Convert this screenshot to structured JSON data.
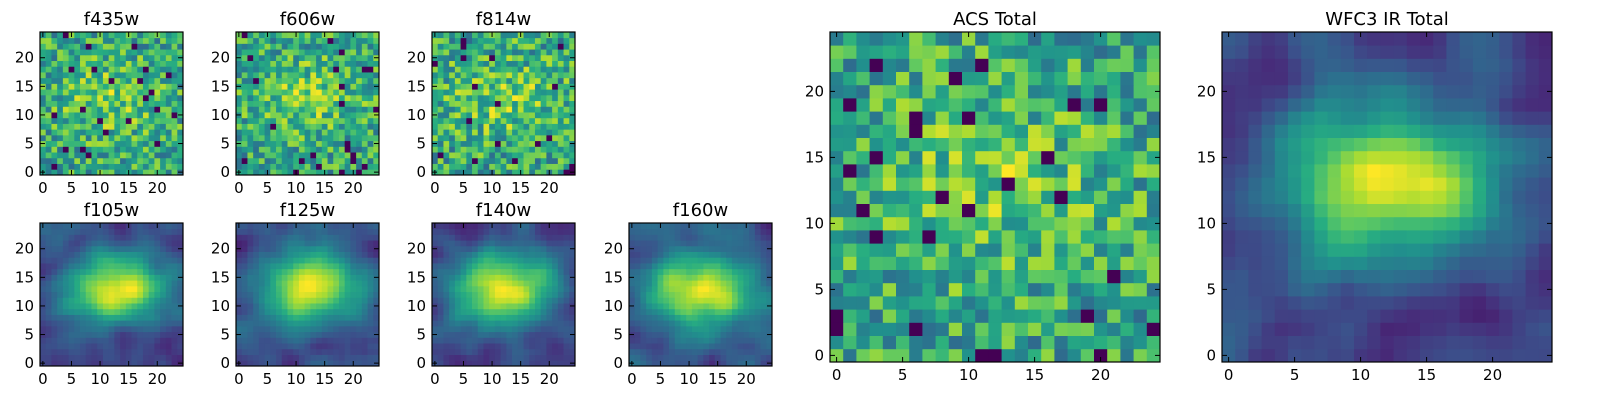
{
  "chart_data": [
    {
      "type": "heatmap",
      "title": "f435w",
      "x_ticks": [
        0,
        5,
        10,
        15,
        20
      ],
      "y_ticks": [
        0,
        5,
        10,
        15,
        20
      ],
      "xlim": [
        -0.5,
        24.5
      ],
      "ylim": [
        -0.5,
        24.5
      ],
      "grid_size": 25,
      "colormap": "viridis",
      "pattern": "noise",
      "grid": false
    },
    {
      "type": "heatmap",
      "title": "f606w",
      "x_ticks": [
        0,
        5,
        10,
        15,
        20
      ],
      "y_ticks": [
        0,
        5,
        10,
        15,
        20
      ],
      "xlim": [
        -0.5,
        24.5
      ],
      "ylim": [
        -0.5,
        24.5
      ],
      "grid_size": 25,
      "colormap": "viridis",
      "pattern": "noise",
      "grid": false
    },
    {
      "type": "heatmap",
      "title": "f814w",
      "x_ticks": [
        0,
        5,
        10,
        15,
        20
      ],
      "y_ticks": [
        0,
        5,
        10,
        15,
        20
      ],
      "xlim": [
        -0.5,
        24.5
      ],
      "ylim": [
        -0.5,
        24.5
      ],
      "grid_size": 25,
      "colormap": "viridis",
      "pattern": "noise",
      "grid": false
    },
    {
      "type": "heatmap",
      "title": "f105w",
      "x_ticks": [
        0,
        5,
        10,
        15,
        20
      ],
      "y_ticks": [
        0,
        5,
        10,
        15,
        20
      ],
      "xlim": [
        -0.5,
        24.5
      ],
      "ylim": [
        -0.5,
        24.5
      ],
      "grid_size": 25,
      "colormap": "viridis",
      "pattern": "smooth",
      "grid": false
    },
    {
      "type": "heatmap",
      "title": "f125w",
      "x_ticks": [
        0,
        5,
        10,
        15,
        20
      ],
      "y_ticks": [
        0,
        5,
        10,
        15,
        20
      ],
      "xlim": [
        -0.5,
        24.5
      ],
      "ylim": [
        -0.5,
        24.5
      ],
      "grid_size": 25,
      "colormap": "viridis",
      "pattern": "smooth",
      "grid": false
    },
    {
      "type": "heatmap",
      "title": "f140w",
      "x_ticks": [
        0,
        5,
        10,
        15,
        20
      ],
      "y_ticks": [
        0,
        5,
        10,
        15,
        20
      ],
      "xlim": [
        -0.5,
        24.5
      ],
      "ylim": [
        -0.5,
        24.5
      ],
      "grid_size": 25,
      "colormap": "viridis",
      "pattern": "smooth",
      "grid": false
    },
    {
      "type": "heatmap",
      "title": "f160w",
      "x_ticks": [
        0,
        5,
        10,
        15,
        20
      ],
      "y_ticks": [
        0,
        5,
        10,
        15,
        20
      ],
      "xlim": [
        -0.5,
        24.5
      ],
      "ylim": [
        -0.5,
        24.5
      ],
      "grid_size": 25,
      "colormap": "viridis",
      "pattern": "smooth",
      "grid": false
    },
    {
      "type": "heatmap",
      "title": "ACS Total",
      "x_ticks": [
        0,
        5,
        10,
        15,
        20
      ],
      "y_ticks": [
        0,
        5,
        10,
        15,
        20
      ],
      "xlim": [
        -0.5,
        24.5
      ],
      "ylim": [
        -0.5,
        24.5
      ],
      "grid_size": 25,
      "colormap": "viridis",
      "pattern": "noise",
      "grid": false
    },
    {
      "type": "heatmap",
      "title": "WFC3 IR Total",
      "x_ticks": [
        0,
        5,
        10,
        15,
        20
      ],
      "y_ticks": [
        0,
        5,
        10,
        15,
        20
      ],
      "xlim": [
        -0.5,
        24.5
      ],
      "ylim": [
        -0.5,
        24.5
      ],
      "grid_size": 25,
      "colormap": "viridis",
      "pattern": "smooth",
      "grid": false
    }
  ]
}
